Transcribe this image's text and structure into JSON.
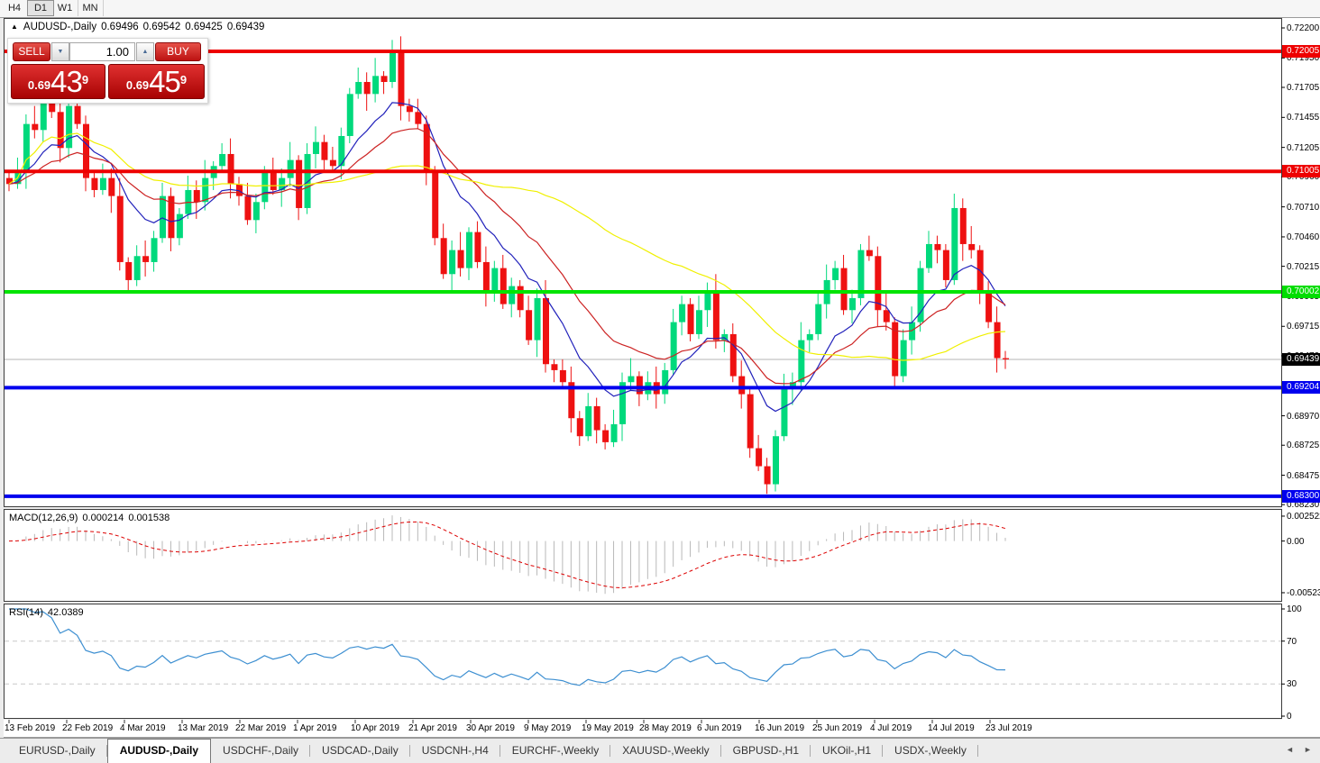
{
  "toolbar": {
    "timeframes": [
      {
        "label": "H4",
        "active": false
      },
      {
        "label": "D1",
        "active": true
      },
      {
        "label": "W1",
        "active": false
      },
      {
        "label": "MN",
        "active": false
      }
    ]
  },
  "chart_header": {
    "collapse_icon": "▲",
    "symbol": "AUDUSD-,Daily",
    "open": "0.69496",
    "high": "0.69542",
    "low": "0.69425",
    "close": "0.69439"
  },
  "trade_panel": {
    "sell_label": "SELL",
    "buy_label": "BUY",
    "volume": "1.00",
    "down_arrow": "▼",
    "up_arrow": "▲",
    "sell_price": {
      "prefix": "0.69",
      "big": "43",
      "sup": "9"
    },
    "buy_price": {
      "prefix": "0.69",
      "big": "45",
      "sup": "9"
    }
  },
  "price_axis": {
    "ticks": [
      "0.72200",
      "0.71950",
      "0.71705",
      "0.71455",
      "0.71205",
      "0.70960",
      "0.70710",
      "0.70460",
      "0.70215",
      "0.69965",
      "0.69715",
      "0.69470",
      "0.68970",
      "0.68725",
      "0.68475",
      "0.68230"
    ],
    "badges": [
      {
        "label": "0.72005",
        "price": 0.72005,
        "bg": "#ee0000",
        "fg": "#ffffff"
      },
      {
        "label": "0.71005",
        "price": 0.71005,
        "bg": "#ee0000",
        "fg": "#ffffff"
      },
      {
        "label": "0.70002",
        "price": 0.70002,
        "bg": "#00dd00",
        "fg": "#ffffff"
      },
      {
        "label": "0.69439",
        "price": 0.69439,
        "bg": "#000000",
        "fg": "#ffffff"
      },
      {
        "label": "0.69204",
        "price": 0.69204,
        "bg": "#0000ee",
        "fg": "#ffffff"
      },
      {
        "label": "0.68300",
        "price": 0.683,
        "bg": "#0000ee",
        "fg": "#ffffff"
      }
    ]
  },
  "chart_data": {
    "type": "candlestick",
    "symbol": "AUDUSD-",
    "timeframe": "Daily",
    "x_tick_labels": [
      "13 Feb 2019",
      "22 Feb 2019",
      "4 Mar 2019",
      "13 Mar 2019",
      "22 Mar 2019",
      "1 Apr 2019",
      "10 Apr 2019",
      "21 Apr 2019",
      "30 Apr 2019",
      "9 May 2019",
      "19 May 2019",
      "28 May 2019",
      "6 Jun 2019",
      "16 Jun 2019",
      "25 Jun 2019",
      "4 Jul 2019",
      "14 Jul 2019",
      "23 Jul 2019"
    ],
    "ylim": [
      0.68253,
      0.72275
    ],
    "closes": [
      0.709,
      0.71,
      0.714,
      0.7135,
      0.716,
      0.715,
      0.712,
      0.7155,
      0.714,
      0.7095,
      0.7085,
      0.7095,
      0.708,
      0.7025,
      0.701,
      0.703,
      0.7025,
      0.7045,
      0.708,
      0.7045,
      0.7065,
      0.7085,
      0.7075,
      0.7095,
      0.7105,
      0.7115,
      0.709,
      0.708,
      0.706,
      0.7075,
      0.71,
      0.7085,
      0.7095,
      0.711,
      0.707,
      0.7115,
      0.7125,
      0.711,
      0.7105,
      0.713,
      0.7165,
      0.7175,
      0.7165,
      0.718,
      0.7175,
      0.72,
      0.7155,
      0.715,
      0.714,
      0.71,
      0.7045,
      0.7015,
      0.7035,
      0.702,
      0.705,
      0.7025,
      0.7,
      0.702,
      0.699,
      0.7005,
      0.6985,
      0.696,
      0.6995,
      0.694,
      0.6935,
      0.6925,
      0.6895,
      0.688,
      0.6905,
      0.6885,
      0.6875,
      0.689,
      0.6925,
      0.693,
      0.6915,
      0.6925,
      0.6915,
      0.6935,
      0.6975,
      0.699,
      0.6965,
      0.6985,
      0.7,
      0.696,
      0.6965,
      0.693,
      0.6915,
      0.687,
      0.6855,
      0.684,
      0.688,
      0.692,
      0.6925,
      0.696,
      0.6965,
      0.699,
      0.701,
      0.702,
      0.6985,
      0.6995,
      0.7035,
      0.703,
      0.6985,
      0.6975,
      0.693,
      0.696,
      0.6975,
      0.702,
      0.704,
      0.7035,
      0.701,
      0.707,
      0.704,
      0.7035,
      0.7,
      0.6975,
      0.6945,
      0.6944
    ],
    "wick_up_pattern": [
      5,
      12,
      8,
      15,
      4,
      9,
      13,
      6,
      11,
      7
    ],
    "wick_dn_pattern": [
      6,
      4,
      14,
      7,
      10,
      5,
      12,
      8,
      4,
      11
    ],
    "wick_overrides": {
      "45": {
        "high": 0.721
      },
      "89": {
        "low": 0.6832
      }
    },
    "candle_up_color": "#00d97c",
    "candle_down_color": "#ee1111",
    "levels": [
      {
        "price": 0.72005,
        "color": "#ee0000"
      },
      {
        "price": 0.71005,
        "color": "#ee0000"
      },
      {
        "price": 0.70002,
        "color": "#00e400"
      },
      {
        "price": 0.69204,
        "color": "#0000ee"
      },
      {
        "price": 0.683,
        "color": "#0000ee"
      }
    ],
    "current_price_line": {
      "price": 0.69439,
      "color": "#b4b4b4"
    },
    "moving_averages": [
      {
        "type": "ema",
        "period": 10,
        "color": "#2222bb"
      },
      {
        "type": "ema",
        "period": 21,
        "color": "#cc2222"
      },
      {
        "type": "sma",
        "period": 45,
        "color": "#f0f000"
      }
    ],
    "macd": {
      "label": "MACD(12,26,9)",
      "value_main": "0.000214",
      "value_signal": "0.001538",
      "fast": 12,
      "slow": 26,
      "signal": 9,
      "scale_labels": [
        "0.002522",
        "0.00",
        "-0.005234"
      ],
      "hist_color": "#b8b8b8",
      "signal_color": "#dd0000"
    },
    "rsi": {
      "label": "RSI(14)",
      "value": "42.0389",
      "period": 14,
      "scale_labels": [
        "100",
        "70",
        "30",
        "0"
      ],
      "level_lines": [
        70,
        30
      ],
      "line_color": "#3d8fd1"
    }
  },
  "tab_bar": {
    "scroll_left": "◄",
    "scroll_right": "►",
    "tabs": [
      {
        "label": "EURUSD-,Daily",
        "active": false
      },
      {
        "label": "AUDUSD-,Daily",
        "active": true
      },
      {
        "label": "USDCHF-,Daily",
        "active": false
      },
      {
        "label": "USDCAD-,Daily",
        "active": false
      },
      {
        "label": "USDCNH-,H4",
        "active": false
      },
      {
        "label": "EURCHF-,Weekly",
        "active": false
      },
      {
        "label": "XAUUSD-,Weekly",
        "active": false
      },
      {
        "label": "GBPUSD-,H1",
        "active": false
      },
      {
        "label": "UKOil-,H1",
        "active": false
      },
      {
        "label": "USDX-,Weekly",
        "active": false
      }
    ]
  }
}
